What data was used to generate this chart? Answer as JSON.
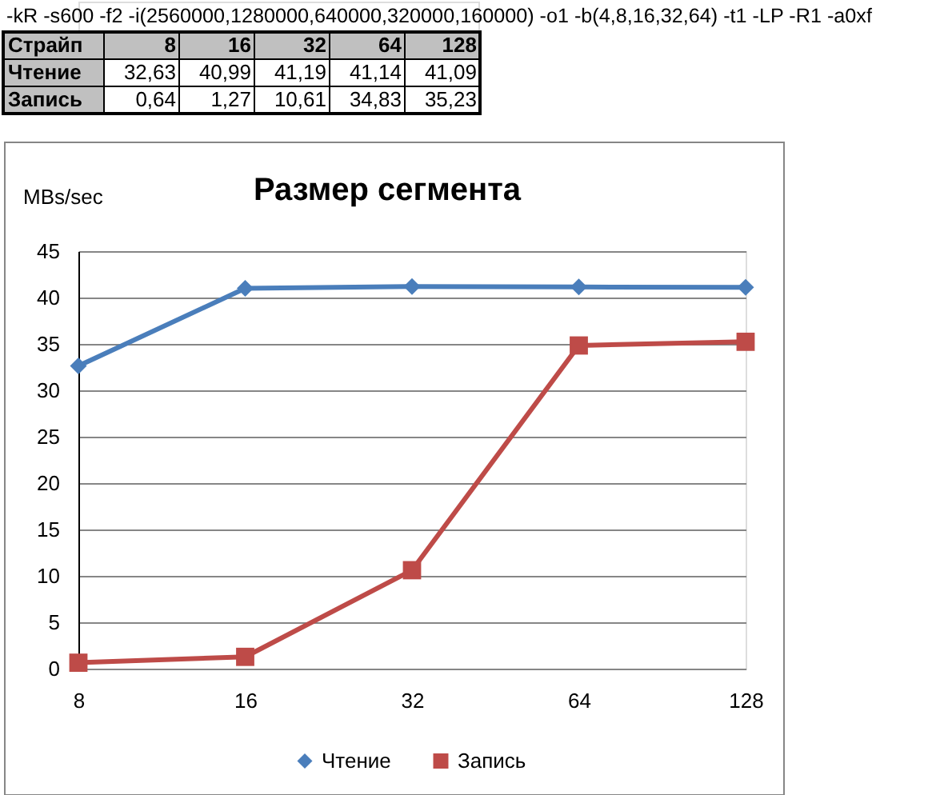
{
  "chart_data": [
    {
      "type": "other",
      "annotations": [
        "-kR -s600 -f2 -i(2560000,1280000,640000,320000,160000) -o1 -b(4,8,16,32,64) -t1 -LP -R1 -a0xf",
        "Страйп"
      ],
      "categories": [
        "8",
        "16",
        "32",
        "64",
        "128"
      ],
      "y_categories": [
        "Чтение",
        "Запись"
      ],
      "cell_labels": [
        [
          "32,63",
          "40,99",
          "41,19",
          "41,14",
          "41,09"
        ],
        [
          "0,64",
          "1,27",
          "10,61",
          "34,83",
          "35,23"
        ]
      ]
    },
    {
      "type": "line",
      "title": "Размер сегмента",
      "ylabel": "MBs/sec",
      "categories": [
        "8",
        "16",
        "32",
        "64",
        "128"
      ],
      "series": [
        {
          "name": "Чтение",
          "color": "#4a7ebb",
          "marker": "diamond",
          "values": [
            32.63,
            40.99,
            41.19,
            41.14,
            41.09
          ]
        },
        {
          "name": "Запись",
          "color": "#be4b48",
          "marker": "square",
          "values": [
            0.64,
            1.27,
            10.61,
            34.83,
            35.23
          ]
        }
      ],
      "ylim": [
        0,
        45
      ],
      "yticks": [
        0,
        5,
        10,
        15,
        20,
        25,
        30,
        35,
        40,
        45
      ],
      "grid": "y",
      "legend": "bottom",
      "line_style": "solid"
    }
  ]
}
